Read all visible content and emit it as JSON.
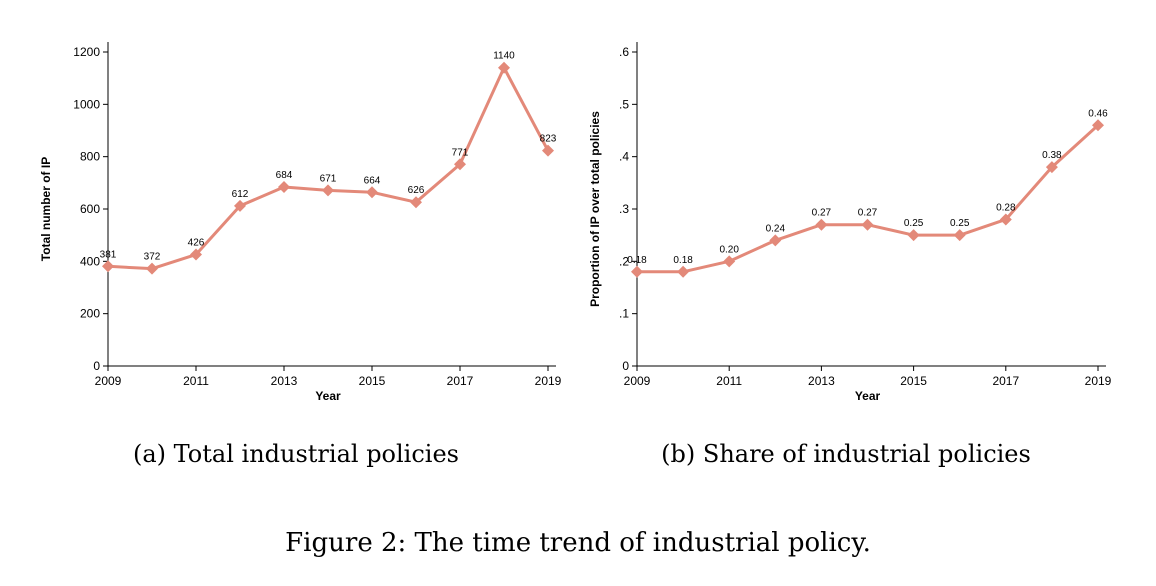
{
  "chart_data": [
    {
      "type": "line",
      "caption": "(a) Total industrial policies",
      "xlabel": "Year",
      "ylabel": "Total number of IP",
      "x": [
        2009,
        2010,
        2011,
        2012,
        2013,
        2014,
        2015,
        2016,
        2017,
        2018,
        2019
      ],
      "values": [
        381,
        372,
        426,
        612,
        684,
        671,
        664,
        626,
        771,
        1140,
        823
      ],
      "data_labels": [
        "381",
        "372",
        "426",
        "612",
        "684",
        "671",
        "664",
        "626",
        "771",
        "1140",
        "823"
      ],
      "xticks": [
        "2009",
        "2011",
        "2013",
        "2015",
        "2017",
        "2019"
      ],
      "yticks": [
        "0",
        "200",
        "400",
        "600",
        "800",
        "1000",
        "1200"
      ],
      "xlim": [
        2009,
        2019
      ],
      "ylim": [
        0,
        1200
      ],
      "marker": "diamond",
      "color": "#e38979",
      "grid": false
    },
    {
      "type": "line",
      "caption": "(b) Share of industrial policies",
      "xlabel": "Year",
      "ylabel": "Proportion of IP over total policies",
      "x": [
        2009,
        2010,
        2011,
        2012,
        2013,
        2014,
        2015,
        2016,
        2017,
        2018,
        2019
      ],
      "values": [
        0.18,
        0.18,
        0.2,
        0.24,
        0.27,
        0.27,
        0.25,
        0.25,
        0.28,
        0.38,
        0.46
      ],
      "data_labels": [
        "0.18",
        "0.18",
        "0.20",
        "0.24",
        "0.27",
        "0.27",
        "0.25",
        "0.25",
        "0.28",
        "0.38",
        "0.46"
      ],
      "xticks": [
        "2009",
        "2011",
        "2013",
        "2015",
        "2017",
        "2019"
      ],
      "yticks": [
        "0",
        ".1",
        ".2",
        ".3",
        ".4",
        ".5",
        ".6"
      ],
      "xlim": [
        2009,
        2019
      ],
      "ylim": [
        0,
        0.6
      ],
      "marker": "diamond",
      "color": "#e38979",
      "grid": false
    }
  ],
  "figure_caption": "Figure 2: The time trend of industrial policy."
}
